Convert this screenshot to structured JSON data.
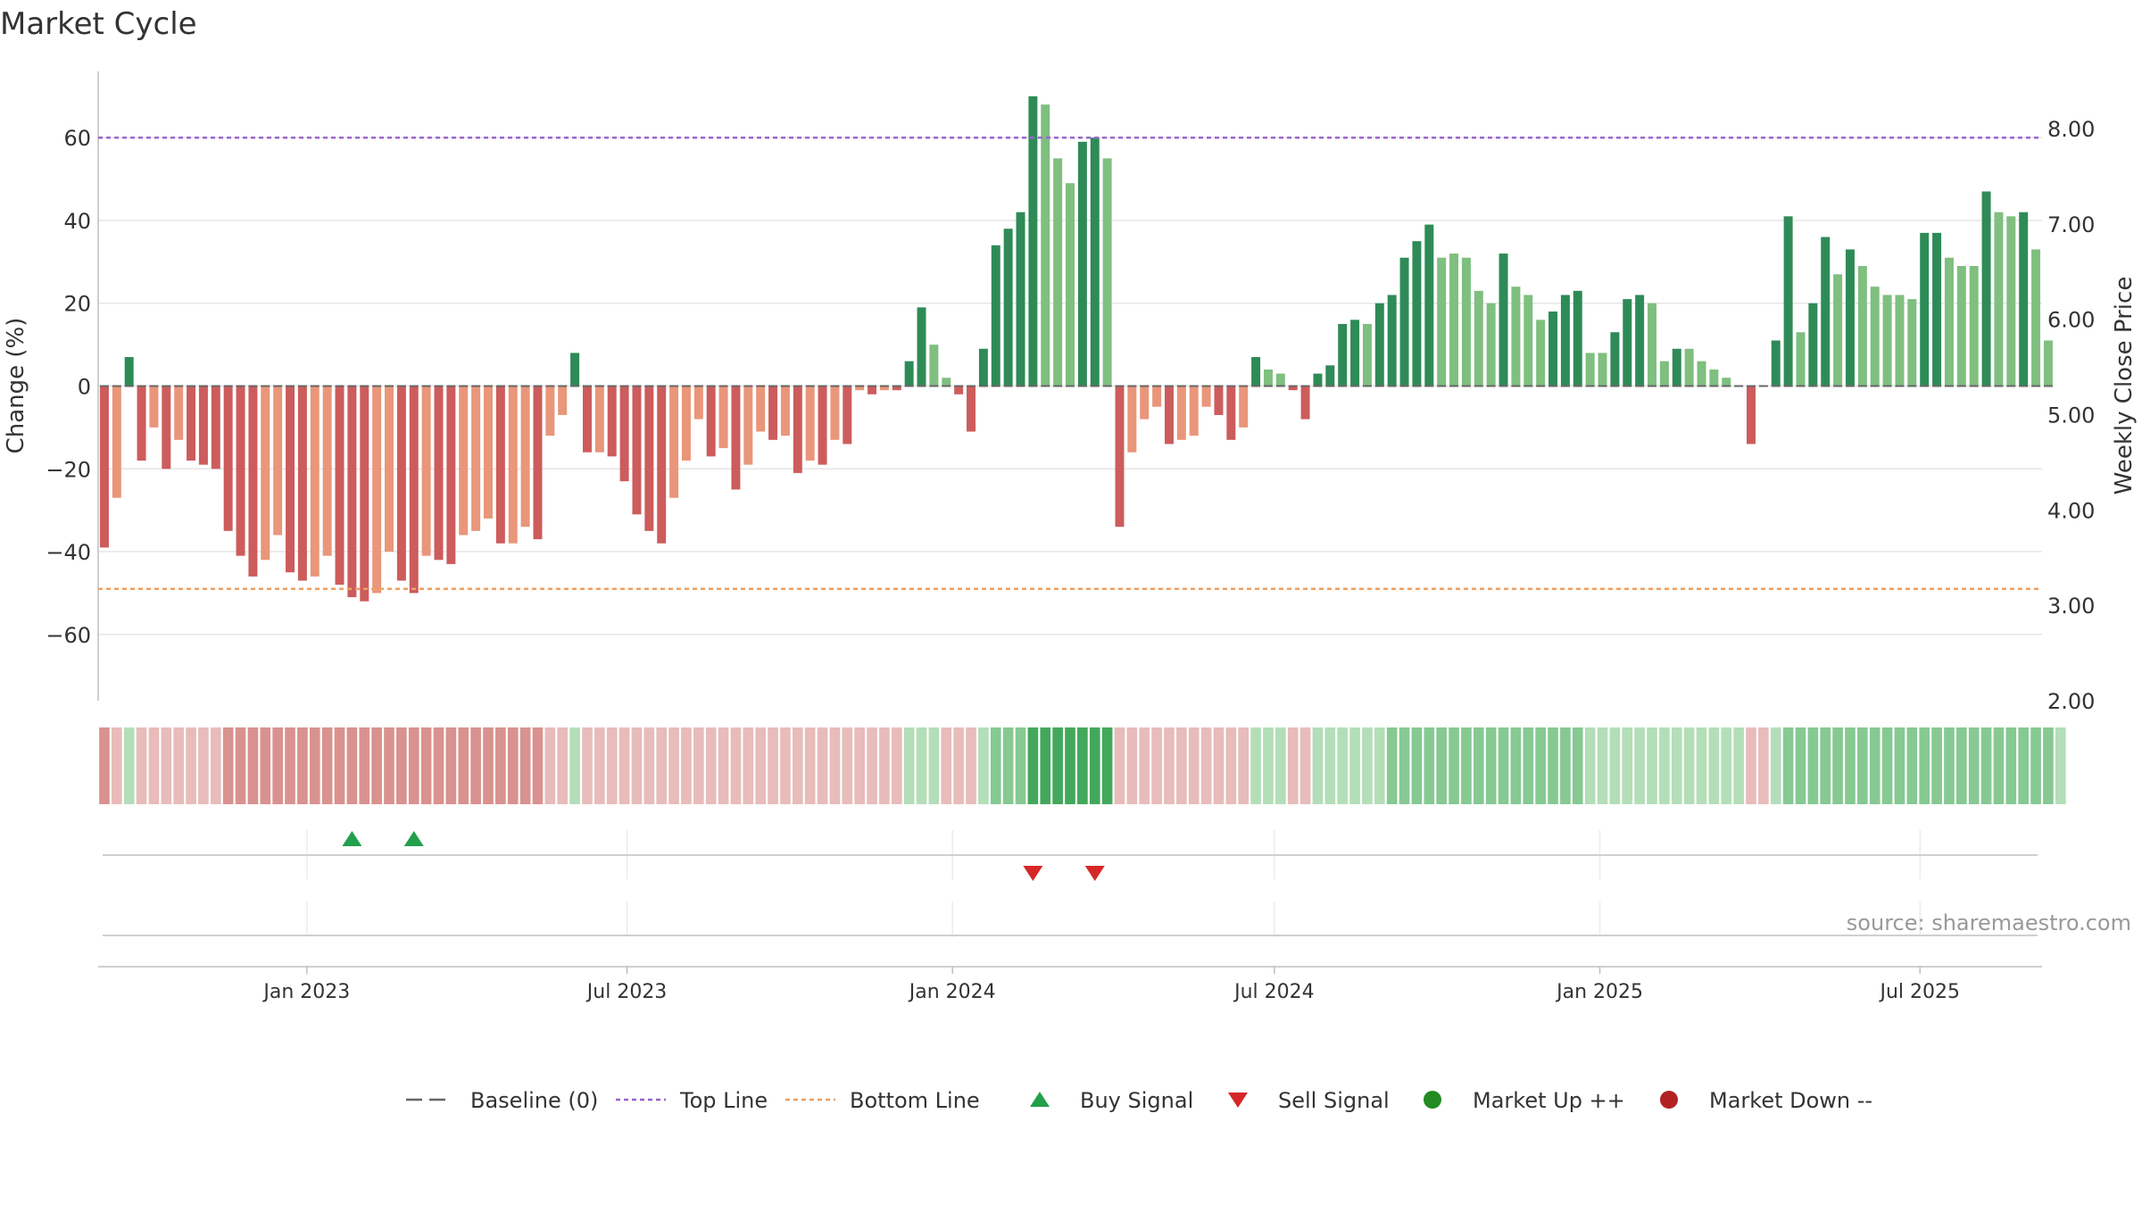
{
  "title": "Market Cycle",
  "source_note": "source: sharemaestro.com",
  "colors": {
    "grid": "#e6e6e6",
    "axis": "#bfbfbf",
    "text": "#333333",
    "top_line": "#9966cc",
    "bottom_line": "#f0a060",
    "baseline": "#666666",
    "up_dark": "#2e8b57",
    "up_light": "#7fbf7f",
    "down_dark": "#cd5c5c",
    "down_light": "#e9967a",
    "buy": "#22a04b",
    "sell": "#d62728",
    "market_up": "#228b22",
    "market_down": "#b22222"
  },
  "chart_data": {
    "type": "bar",
    "ylabel": "Change (%)",
    "ylabel_right": "Weekly Close Price",
    "ylim": [
      -76,
      76
    ],
    "yticks": [
      -60,
      -40,
      -20,
      0,
      20,
      40,
      60
    ],
    "ytick_labels": [
      "−60",
      "−40",
      "−20",
      "0",
      "20",
      "40",
      "60"
    ],
    "ylim_right": [
      2.0,
      8.6
    ],
    "yticks_right": [
      2.0,
      3.0,
      4.0,
      5.0,
      6.0,
      7.0,
      8.0
    ],
    "ytick_labels_right": [
      "2.00",
      "3.00",
      "4.00",
      "5.00",
      "6.00",
      "7.00",
      "8.00"
    ],
    "top_line": 60,
    "bottom_line": -49,
    "x_start_date": "2022-09-05",
    "week_count": 157,
    "xticks": [
      {
        "date": "2023-01-01",
        "label": "Jan 2023"
      },
      {
        "date": "2023-07-01",
        "label": "Jul 2023"
      },
      {
        "date": "2024-01-01",
        "label": "Jan 2024"
      },
      {
        "date": "2024-07-01",
        "label": "Jul 2024"
      },
      {
        "date": "2025-01-01",
        "label": "Jan 2025"
      },
      {
        "date": "2025-07-01",
        "label": "Jul 2025"
      }
    ],
    "values": [
      -39,
      -27,
      7,
      -18,
      -10,
      -20,
      -13,
      -18,
      -19,
      -20,
      -35,
      -41,
      -46,
      -42,
      -36,
      -45,
      -47,
      -46,
      -41,
      -48,
      -51,
      -52,
      -50,
      -40,
      -47,
      -50,
      -41,
      -42,
      -43,
      -36,
      -35,
      -32,
      -38,
      -38,
      -34,
      -37,
      -12,
      -7,
      8,
      -16,
      -16,
      -17,
      -23,
      -31,
      -35,
      -38,
      -27,
      -18,
      -8,
      -17,
      -15,
      -25,
      -19,
      -11,
      -13,
      -12,
      -21,
      -18,
      -19,
      -13,
      -14,
      -1,
      -2,
      -1,
      -1,
      6,
      19,
      10,
      2,
      -2,
      -11,
      9,
      34,
      38,
      42,
      70,
      68,
      55,
      49,
      59,
      60,
      55,
      -34,
      -16,
      -8,
      -5,
      -14,
      -13,
      -12,
      -5,
      -7,
      -13,
      -10,
      7,
      4,
      3,
      -1,
      -8,
      3,
      5,
      15,
      16,
      15,
      20,
      22,
      31,
      35,
      39,
      31,
      32,
      31,
      23,
      20,
      32,
      24,
      22,
      16,
      18,
      22,
      23,
      8,
      8,
      13,
      21,
      22,
      20,
      6,
      9,
      9,
      6,
      4,
      2,
      0,
      -14,
      0,
      11,
      41,
      13,
      20,
      36,
      27,
      33,
      29,
      24,
      22,
      22,
      21,
      37,
      37,
      31,
      29,
      29,
      47,
      42,
      41,
      42,
      33,
      11
    ],
    "bar_tones": [
      "down-dark",
      "down-light",
      "up-dark",
      "down-dark",
      "down-light",
      "down-dark",
      "down-light",
      "down-dark",
      "down-dark",
      "down-dark",
      "down-dark",
      "down-dark",
      "down-dark",
      "down-light",
      "down-light",
      "down-dark",
      "down-dark",
      "down-light",
      "down-light",
      "down-dark",
      "down-dark",
      "down-dark",
      "down-light",
      "down-light",
      "down-dark",
      "down-dark",
      "down-light",
      "down-dark",
      "down-dark",
      "down-light",
      "down-light",
      "down-light",
      "down-dark",
      "down-light",
      "down-light",
      "down-dark",
      "down-light",
      "down-light",
      "up-dark",
      "down-dark",
      "down-light",
      "down-dark",
      "down-dark",
      "down-dark",
      "down-dark",
      "down-dark",
      "down-light",
      "down-light",
      "down-light",
      "down-dark",
      "down-light",
      "down-dark",
      "down-light",
      "down-light",
      "down-dark",
      "down-light",
      "down-dark",
      "down-light",
      "down-dark",
      "down-light",
      "down-dark",
      "down-light",
      "down-dark",
      "down-light",
      "down-dark",
      "up-dark",
      "up-dark",
      "up-light",
      "up-light",
      "down-dark",
      "down-dark",
      "up-dark",
      "up-dark",
      "up-dark",
      "up-dark",
      "up-dark",
      "up-light",
      "up-light",
      "up-light",
      "up-dark",
      "up-dark",
      "up-light",
      "down-dark",
      "down-light",
      "down-light",
      "down-light",
      "down-dark",
      "down-light",
      "down-light",
      "down-light",
      "down-dark",
      "down-dark",
      "down-light",
      "up-dark",
      "up-light",
      "up-light",
      "down-dark",
      "down-dark",
      "up-dark",
      "up-dark",
      "up-dark",
      "up-dark",
      "up-light",
      "up-dark",
      "up-dark",
      "up-dark",
      "up-dark",
      "up-dark",
      "up-light",
      "up-light",
      "up-light",
      "up-light",
      "up-light",
      "up-dark",
      "up-light",
      "up-light",
      "up-light",
      "up-dark",
      "up-dark",
      "up-dark",
      "up-light",
      "up-light",
      "up-dark",
      "up-dark",
      "up-dark",
      "up-light",
      "up-light",
      "up-dark",
      "up-light",
      "up-light",
      "up-light",
      "up-light",
      "up-light",
      "down-dark",
      "up-light",
      "up-dark",
      "up-dark",
      "up-light",
      "up-dark",
      "up-dark",
      "up-light",
      "up-dark",
      "up-light",
      "up-light",
      "up-light",
      "up-light",
      "up-light",
      "up-dark",
      "up-dark",
      "up-light",
      "up-light",
      "up-light",
      "up-dark",
      "up-light",
      "up-light",
      "up-dark",
      "up-light",
      "up-light",
      "up-light"
    ],
    "buy_signal_weeks": [
      20,
      25
    ],
    "sell_signal_weeks": [
      75,
      80
    ]
  },
  "strip": {
    "hues": [
      -2,
      -1,
      1,
      -1,
      -1,
      -1,
      -1,
      -1,
      -1,
      -1,
      -2,
      -2,
      -2,
      -2,
      -2,
      -2,
      -2,
      -2,
      -2,
      -2,
      -2,
      -2,
      -2,
      -2,
      -2,
      -2,
      -2,
      -2,
      -2,
      -2,
      -2,
      -2,
      -2,
      -2,
      -2,
      -2,
      -1,
      -1,
      1,
      -1,
      -1,
      -1,
      -1,
      -1,
      -1,
      -1,
      -1,
      -1,
      -1,
      -1,
      -1,
      -1,
      -1,
      -1,
      -1,
      -1,
      -1,
      -1,
      -1,
      -1,
      -1,
      -1,
      -1,
      -1,
      -1,
      1,
      1,
      1,
      -1,
      -1,
      -1,
      1,
      2,
      2,
      2,
      3,
      3,
      3,
      3,
      3,
      3,
      3,
      -1,
      -1,
      -1,
      -1,
      -1,
      -1,
      -1,
      -1,
      -1,
      -1,
      -1,
      1,
      1,
      1,
      -1,
      -1,
      1,
      1,
      1,
      1,
      1,
      1,
      2,
      2,
      2,
      2,
      2,
      2,
      2,
      2,
      2,
      2,
      2,
      2,
      2,
      2,
      2,
      2,
      1,
      1,
      1,
      1,
      1,
      1,
      1,
      1,
      1,
      1,
      1,
      1,
      1,
      -1,
      -1,
      1,
      2,
      2,
      2,
      2,
      2,
      2,
      2,
      2,
      2,
      2,
      2,
      2,
      2,
      2,
      2,
      2,
      2,
      2,
      2,
      2,
      2,
      2,
      1
    ]
  },
  "legend": {
    "items": [
      {
        "key": "baseline",
        "label": "Baseline (0)"
      },
      {
        "key": "top",
        "label": "Top Line"
      },
      {
        "key": "bottom",
        "label": "Bottom Line"
      },
      {
        "key": "buy",
        "label": "Buy Signal"
      },
      {
        "key": "sell",
        "label": "Sell Signal"
      },
      {
        "key": "mup",
        "label": "Market Up ++"
      },
      {
        "key": "mdown",
        "label": "Market Down --"
      }
    ]
  }
}
